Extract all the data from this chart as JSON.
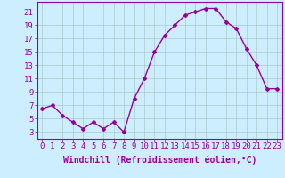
{
  "x": [
    0,
    1,
    2,
    3,
    4,
    5,
    6,
    7,
    8,
    9,
    10,
    11,
    12,
    13,
    14,
    15,
    16,
    17,
    18,
    19,
    20,
    21,
    22,
    23
  ],
  "y": [
    6.5,
    7.0,
    5.5,
    4.5,
    3.5,
    4.5,
    3.5,
    4.5,
    3.0,
    8.0,
    11.0,
    15.0,
    17.5,
    19.0,
    20.5,
    21.0,
    21.5,
    21.5,
    19.5,
    18.5,
    15.5,
    13.0,
    9.5,
    9.5
  ],
  "line_color": "#990099",
  "marker": "D",
  "marker_size": 2,
  "background_color": "#cceeff",
  "grid_color": "#aacccc",
  "xlabel": "Windchill (Refroidissement éolien,°C)",
  "xlabel_fontsize": 7,
  "ytick_values": [
    3,
    5,
    7,
    9,
    11,
    13,
    15,
    17,
    19,
    21
  ],
  "xlim": [
    -0.5,
    23.5
  ],
  "ylim": [
    2.0,
    22.5
  ],
  "tick_fontsize": 6.5,
  "tick_color": "#990099",
  "spine_color": "#990099",
  "linewidth": 1.0
}
